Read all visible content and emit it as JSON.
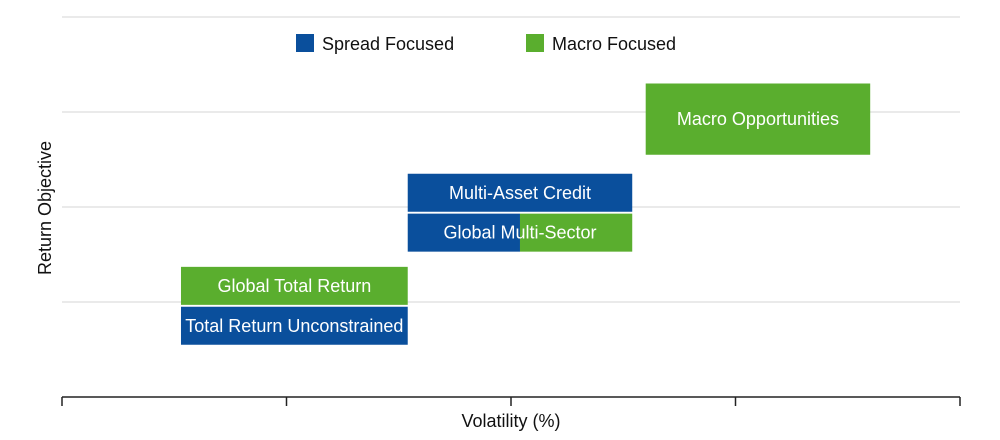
{
  "chart_data": {
    "type": "range-box",
    "xlabel": "Volatility (%)",
    "ylabel": "Return Objective",
    "grid": true,
    "xlim": [
      0,
      4
    ],
    "ylim": [
      0,
      4
    ],
    "legend": {
      "placement": "top-center",
      "entries": [
        {
          "name": "Spread Focused",
          "color": "#0a4f9c"
        },
        {
          "name": "Macro Focused",
          "color": "#5aae2e"
        }
      ]
    },
    "boxes": [
      {
        "label": "Macro Opportunities",
        "x_start": 2.6,
        "x_end": 3.6,
        "y_low": 2.55,
        "y_high": 3.3,
        "segments": [
          {
            "category": "Macro Focused",
            "x_start": 2.6,
            "x_end": 3.6
          }
        ]
      },
      {
        "label": "Multi-Asset Credit",
        "x_start": 1.54,
        "x_end": 2.54,
        "y_low": 1.95,
        "y_high": 2.35,
        "segments": [
          {
            "category": "Spread Focused",
            "x_start": 1.54,
            "x_end": 2.54
          }
        ]
      },
      {
        "label": "Global Multi-Sector",
        "x_start": 1.54,
        "x_end": 2.54,
        "y_low": 1.53,
        "y_high": 1.93,
        "segments": [
          {
            "category": "Spread Focused",
            "x_start": 1.54,
            "x_end": 2.04
          },
          {
            "category": "Macro Focused",
            "x_start": 2.04,
            "x_end": 2.54
          }
        ]
      },
      {
        "label": "Global Total Return",
        "x_start": 0.53,
        "x_end": 1.54,
        "y_low": 0.97,
        "y_high": 1.37,
        "segments": [
          {
            "category": "Macro Focused",
            "x_start": 0.53,
            "x_end": 1.54
          }
        ]
      },
      {
        "label": "Total Return Unconstrained",
        "x_start": 0.53,
        "x_end": 1.54,
        "y_low": 0.55,
        "y_high": 0.95,
        "segments": [
          {
            "category": "Spread Focused",
            "x_start": 0.53,
            "x_end": 1.54
          }
        ]
      }
    ]
  }
}
